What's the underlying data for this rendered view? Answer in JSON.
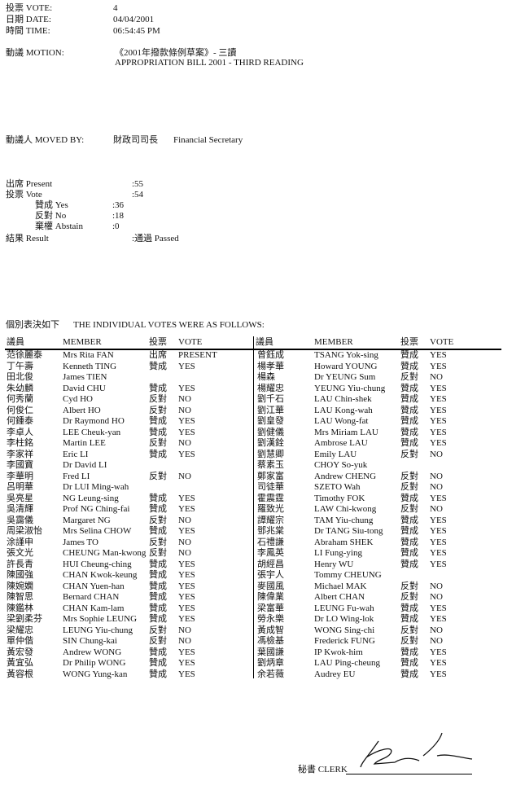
{
  "header": {
    "vote_label": "投票 VOTE:",
    "vote_value": "4",
    "date_label": "日期 DATE:",
    "date_value": "04/04/2001",
    "time_label": "時間 TIME:",
    "time_value": "06:54:45 PM",
    "motion_label": "動議 MOTION:",
    "motion_zh": "《2001年撥款條例草案》- 三讀",
    "motion_en": "APPROPRIATION BILL 2001 - THIRD READING"
  },
  "moved_by": {
    "label": "動議人 MOVED BY:",
    "value_zh": "財政司司長",
    "value_en": "Financial Secretary"
  },
  "summary": {
    "present_label": "出席 Present",
    "present_value": ":55",
    "vote_label": "投票 Vote",
    "vote_value": ":54",
    "yes_label": "贊成 Yes",
    "yes_value": ":36",
    "no_label": "反對 No",
    "no_value": ":18",
    "abstain_label": "棄權 Abstain",
    "abstain_value": ":0",
    "result_label": "結果 Result",
    "result_value": ":通過 Passed"
  },
  "table": {
    "intro_zh": "個別表決如下",
    "intro_en": "THE INDIVIDUAL VOTES WERE AS FOLLOWS:",
    "headers": [
      "議員",
      "MEMBER",
      "投票",
      "VOTE"
    ],
    "left": [
      [
        "范徐麗泰",
        "Mrs Rita FAN",
        "出席",
        "PRESENT"
      ],
      [
        "丁午壽",
        "Kenneth TING",
        "贊成",
        "YES"
      ],
      [
        "田北俊",
        "James TIEN",
        "",
        ""
      ],
      [
        "朱幼麟",
        "David CHU",
        "贊成",
        "YES"
      ],
      [
        "何秀蘭",
        "Cyd HO",
        "反對",
        "NO"
      ],
      [
        "何俊仁",
        "Albert HO",
        "反對",
        "NO"
      ],
      [
        "何鍾泰",
        "Dr Raymond HO",
        "贊成",
        "YES"
      ],
      [
        "李卓人",
        "LEE Cheuk-yan",
        "贊成",
        "YES"
      ],
      [
        "李柱銘",
        "Martin LEE",
        "反對",
        "NO"
      ],
      [
        "李家祥",
        "Eric LI",
        "贊成",
        "YES"
      ],
      [
        "李國寶",
        "Dr David LI",
        "",
        ""
      ],
      [
        "李華明",
        "Fred LI",
        "反對",
        "NO"
      ],
      [
        "呂明華",
        "Dr LUI Ming-wah",
        "",
        ""
      ],
      [
        "吳亮星",
        "NG Leung-sing",
        "贊成",
        "YES"
      ],
      [
        "吳清輝",
        "Prof NG Ching-fai",
        "贊成",
        "YES"
      ],
      [
        "吳靄儀",
        "Margaret NG",
        "反對",
        "NO"
      ],
      [
        "周梁淑怡",
        "Mrs Selina CHOW",
        "贊成",
        "YES"
      ],
      [
        "涂謹申",
        "James TO",
        "反對",
        "NO"
      ],
      [
        "張文光",
        "CHEUNG Man-kwong",
        "反對",
        "NO"
      ],
      [
        "許長青",
        "HUI Cheung-ching",
        "贊成",
        "YES"
      ],
      [
        "陳國強",
        "CHAN Kwok-keung",
        "贊成",
        "YES"
      ],
      [
        "陳婉嫻",
        "CHAN Yuen-han",
        "贊成",
        "YES"
      ],
      [
        "陳智思",
        "Bernard CHAN",
        "贊成",
        "YES"
      ],
      [
        "陳鑑林",
        "CHAN Kam-lam",
        "贊成",
        "YES"
      ],
      [
        "梁劉柔芬",
        "Mrs Sophie LEUNG",
        "贊成",
        "YES"
      ],
      [
        "梁耀忠",
        "LEUNG Yiu-chung",
        "反對",
        "NO"
      ],
      [
        "單仲偕",
        "SIN Chung-kai",
        "反對",
        "NO"
      ],
      [
        "黃宏發",
        "Andrew WONG",
        "贊成",
        "YES"
      ],
      [
        "黃宜弘",
        "Dr Philip WONG",
        "贊成",
        "YES"
      ],
      [
        "黃容根",
        "WONG Yung-kan",
        "贊成",
        "YES"
      ]
    ],
    "right": [
      [
        "曾鈺成",
        "TSANG Yok-sing",
        "贊成",
        "YES"
      ],
      [
        "楊孝華",
        "Howard YOUNG",
        "贊成",
        "YES"
      ],
      [
        "楊森",
        "Dr YEUNG Sum",
        "反對",
        "NO"
      ],
      [
        "楊耀忠",
        "YEUNG Yiu-chung",
        "贊成",
        "YES"
      ],
      [
        "劉千石",
        "LAU Chin-shek",
        "贊成",
        "YES"
      ],
      [
        "劉江華",
        "LAU Kong-wah",
        "贊成",
        "YES"
      ],
      [
        "劉皇發",
        "LAU Wong-fat",
        "贊成",
        "YES"
      ],
      [
        "劉健儀",
        "Mrs Miriam LAU",
        "贊成",
        "YES"
      ],
      [
        "劉漢銓",
        "Ambrose LAU",
        "贊成",
        "YES"
      ],
      [
        "劉慧卿",
        "Emily LAU",
        "反對",
        "NO"
      ],
      [
        "蔡素玉",
        "CHOY So-yuk",
        "",
        ""
      ],
      [
        "鄭家富",
        "Andrew CHENG",
        "反對",
        "NO"
      ],
      [
        "司徒華",
        "SZETO Wah",
        "反對",
        "NO"
      ],
      [
        "霍震霆",
        "Timothy FOK",
        "贊成",
        "YES"
      ],
      [
        "羅致光",
        "LAW Chi-kwong",
        "反對",
        "NO"
      ],
      [
        "譚耀宗",
        "TAM Yiu-chung",
        "贊成",
        "YES"
      ],
      [
        "鄧兆棠",
        "Dr TANG Siu-tong",
        "贊成",
        "YES"
      ],
      [
        "石禮謙",
        "Abraham SHEK",
        "贊成",
        "YES"
      ],
      [
        "李鳳英",
        "LI Fung-ying",
        "贊成",
        "YES"
      ],
      [
        "胡經昌",
        "Henry WU",
        "贊成",
        "YES"
      ],
      [
        "張宇人",
        "Tommy CHEUNG",
        "",
        ""
      ],
      [
        "麥國風",
        "Michael MAK",
        "反對",
        "NO"
      ],
      [
        "陳偉業",
        "Albert CHAN",
        "反對",
        "NO"
      ],
      [
        "梁富華",
        "LEUNG Fu-wah",
        "贊成",
        "YES"
      ],
      [
        "勞永樂",
        "Dr LO Wing-lok",
        "贊成",
        "YES"
      ],
      [
        "黃成智",
        "WONG Sing-chi",
        "反對",
        "NO"
      ],
      [
        "馮檢基",
        "Frederick FUNG",
        "反對",
        "NO"
      ],
      [
        "葉國謙",
        "IP Kwok-him",
        "贊成",
        "YES"
      ],
      [
        "劉炳章",
        "LAU Ping-cheung",
        "贊成",
        "YES"
      ],
      [
        "余若薇",
        "Audrey EU",
        "贊成",
        "YES"
      ]
    ]
  },
  "footer": {
    "clerk_label": "秘書 CLERK"
  }
}
